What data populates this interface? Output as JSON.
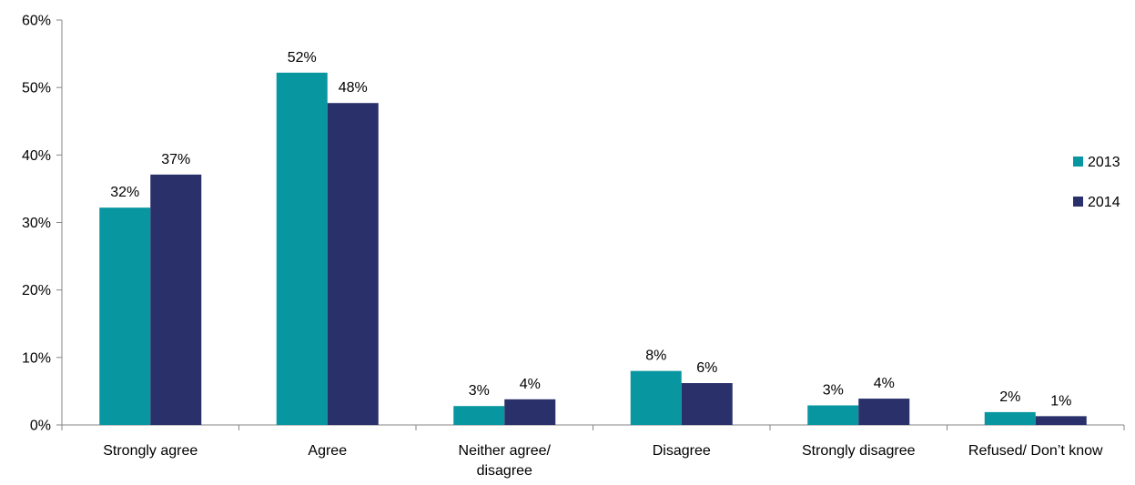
{
  "chart_data": {
    "type": "bar",
    "title": "",
    "xlabel": "",
    "ylabel": "",
    "ylim": [
      0,
      60
    ],
    "yticks": [
      0,
      10,
      20,
      30,
      40,
      50,
      60
    ],
    "ytick_format": "{v}%",
    "grid": false,
    "legend_position": "right",
    "categories": [
      [
        "Strongly agree"
      ],
      [
        "Agree"
      ],
      [
        "Neither agree/",
        "disagree"
      ],
      [
        "Disagree"
      ],
      [
        "Strongly disagree"
      ],
      [
        "Refused/ Don’t know"
      ]
    ],
    "series": [
      {
        "name": "2013",
        "color": "#0896A0",
        "values": [
          32,
          52,
          3,
          8,
          3,
          2
        ],
        "labels": [
          "32%",
          "52%",
          "3%",
          "8%",
          "3%",
          "2%"
        ],
        "plot_values": [
          32.2,
          52.2,
          2.8,
          8.0,
          2.9,
          1.9
        ]
      },
      {
        "name": "2014",
        "color": "#29306A",
        "values": [
          37,
          48,
          4,
          6,
          4,
          1
        ],
        "labels": [
          "37%",
          "48%",
          "4%",
          "6%",
          "4%",
          "1%"
        ],
        "plot_values": [
          37.1,
          47.7,
          3.8,
          6.2,
          3.9,
          1.3
        ]
      }
    ]
  }
}
